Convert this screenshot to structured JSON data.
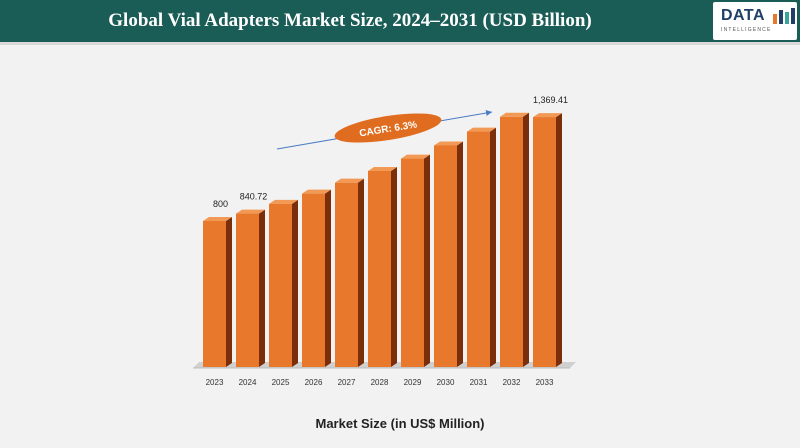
{
  "header": {
    "title": "Global Vial Adapters Market Size, 2024–2031 (USD Billion)",
    "logo_text": "DATA",
    "logo_sub": "INTELLIGENCE"
  },
  "colors": {
    "header_bg": "#1a5c56",
    "bar_front": "#e8782b",
    "bar_side": "#7a2e0a",
    "bar_top": "#f29a55",
    "cagr_ellipse": "#e06d1f",
    "arrow": "#4a7bc4"
  },
  "annotation": {
    "cagr": "CAGR: 6.3%"
  },
  "chart_data": {
    "type": "bar",
    "title": "Global Vial Adapters Market Size, 2024–2031 (USD Billion)",
    "xlabel": "Market Size (in US$ Million)",
    "ylabel": "",
    "categories": [
      "2023",
      "2024",
      "2025",
      "2026",
      "2027",
      "2028",
      "2029",
      "2030",
      "2031",
      "2032",
      "2033"
    ],
    "values": [
      800,
      840.72,
      894,
      950,
      1010,
      1074,
      1142,
      1214,
      1290,
      1371,
      1369.41
    ],
    "data_labels": {
      "0": "800",
      "1": "840.72",
      "10": "1,369.41"
    },
    "ylim": [
      0,
      1400
    ],
    "grid": false,
    "legend": "none"
  }
}
